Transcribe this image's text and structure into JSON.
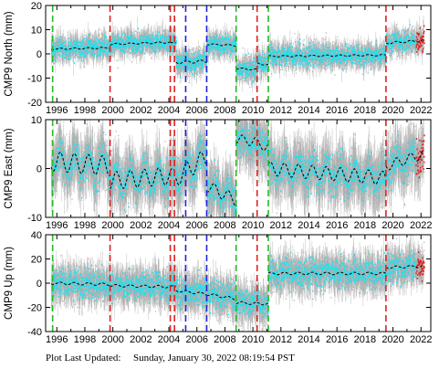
{
  "footer": {
    "label": "Plot Last Updated:",
    "timestamp": "Sunday, January 30, 2022 08:19:54 PST"
  },
  "colors": {
    "raw": "#aaaaaa",
    "cleaned": "#22e0f0",
    "recent": "#e02020",
    "trend": "#000000",
    "green_line": "#22bb22",
    "red_line": "#dd2222",
    "blue_line": "#2222dd"
  },
  "chart_data": [
    {
      "type": "scatter",
      "ylabel": "CMP9 North (mm)",
      "xlim": [
        1995.2,
        2022.7
      ],
      "ylim": [
        -20,
        20
      ],
      "yticks": [
        -20,
        -10,
        0,
        10,
        20
      ],
      "xticks": [
        1996,
        1998,
        2000,
        2002,
        2004,
        2006,
        2008,
        2010,
        2012,
        2014,
        2016,
        2018,
        2020,
        2022
      ],
      "trend_segments": [
        {
          "x": [
            1995.6,
            1999.8
          ],
          "y": [
            2.0,
            2.5
          ],
          "seasonal": 0.3
        },
        {
          "x": [
            1999.8,
            2004.1
          ],
          "y": [
            4.0,
            4.8
          ],
          "seasonal": 0.3
        },
        {
          "x": [
            2004.1,
            2004.5
          ],
          "y": [
            4.5,
            4.5
          ],
          "seasonal": 0.2
        },
        {
          "x": [
            2004.5,
            2006.7
          ],
          "y": [
            -3.5,
            -3.0
          ],
          "seasonal": 0.6
        },
        {
          "x": [
            2006.7,
            2008.8
          ],
          "y": [
            4.0,
            3.5
          ],
          "seasonal": 0.3
        },
        {
          "x": [
            2008.8,
            2010.3
          ],
          "y": [
            -6.0,
            -6.5
          ],
          "seasonal": 0.3
        },
        {
          "x": [
            2010.3,
            2011.1
          ],
          "y": [
            -4.0,
            -4.5
          ],
          "seasonal": 0.3
        },
        {
          "x": [
            2011.1,
            2019.5
          ],
          "y": [
            -1.0,
            -0.5
          ],
          "seasonal": 0.3
        },
        {
          "x": [
            2019.5,
            2022.2
          ],
          "y": [
            4.5,
            5.5
          ],
          "seasonal": 0.4
        }
      ],
      "noise": 2.0,
      "errorbar": 4.0,
      "vlines": [
        {
          "x": 1995.7,
          "color": "green"
        },
        {
          "x": 1999.8,
          "color": "red"
        },
        {
          "x": 2004.1,
          "color": "red"
        },
        {
          "x": 2004.4,
          "color": "red"
        },
        {
          "x": 2005.2,
          "color": "blue"
        },
        {
          "x": 2006.7,
          "color": "blue"
        },
        {
          "x": 2008.8,
          "color": "green"
        },
        {
          "x": 2010.3,
          "color": "red"
        },
        {
          "x": 2011.1,
          "color": "green"
        },
        {
          "x": 2019.5,
          "color": "red"
        }
      ]
    },
    {
      "type": "scatter",
      "ylabel": "CMP9 East (mm)",
      "xlim": [
        1995.2,
        2022.7
      ],
      "ylim": [
        -10,
        10
      ],
      "yticks": [
        -10,
        0,
        10
      ],
      "xticks": [
        1996,
        1998,
        2000,
        2002,
        2004,
        2006,
        2008,
        2010,
        2012,
        2014,
        2016,
        2018,
        2020,
        2022
      ],
      "trend_segments": [
        {
          "x": [
            1995.6,
            1999.8
          ],
          "y": [
            1.5,
            0.5
          ],
          "seasonal": 2.0
        },
        {
          "x": [
            1999.8,
            2004.1
          ],
          "y": [
            -2.5,
            -1.5
          ],
          "seasonal": 1.8
        },
        {
          "x": [
            2004.1,
            2004.5
          ],
          "y": [
            -1.0,
            -1.0
          ],
          "seasonal": 1.0
        },
        {
          "x": [
            2004.5,
            2006.7
          ],
          "y": [
            -2.0,
            2.5
          ],
          "seasonal": 1.8
        },
        {
          "x": [
            2006.7,
            2008.8
          ],
          "y": [
            -3.5,
            -6.5
          ],
          "seasonal": 1.2
        },
        {
          "x": [
            2008.8,
            2010.3
          ],
          "y": [
            6.0,
            5.5
          ],
          "seasonal": 1.0
        },
        {
          "x": [
            2010.3,
            2011.1
          ],
          "y": [
            5.0,
            4.5
          ],
          "seasonal": 1.0
        },
        {
          "x": [
            2011.1,
            2019.5
          ],
          "y": [
            0.0,
            -2.0
          ],
          "seasonal": 1.4
        },
        {
          "x": [
            2019.5,
            2022.2
          ],
          "y": [
            0.5,
            3.0
          ],
          "seasonal": 1.0
        }
      ],
      "noise": 1.8,
      "errorbar": 4.5,
      "vlines": [
        {
          "x": 1995.7,
          "color": "green"
        },
        {
          "x": 1999.8,
          "color": "red"
        },
        {
          "x": 2004.1,
          "color": "red"
        },
        {
          "x": 2004.4,
          "color": "red"
        },
        {
          "x": 2005.2,
          "color": "blue"
        },
        {
          "x": 2006.7,
          "color": "blue"
        },
        {
          "x": 2008.8,
          "color": "green"
        },
        {
          "x": 2010.3,
          "color": "red"
        },
        {
          "x": 2011.1,
          "color": "green"
        },
        {
          "x": 2019.5,
          "color": "red"
        }
      ]
    },
    {
      "type": "scatter",
      "ylabel": "CMP9 Up (mm)",
      "xlim": [
        1995.2,
        2022.7
      ],
      "ylim": [
        -40,
        40
      ],
      "yticks": [
        -40,
        -20,
        0,
        20,
        40
      ],
      "xticks": [
        1996,
        1998,
        2000,
        2002,
        2004,
        2006,
        2008,
        2010,
        2012,
        2014,
        2016,
        2018,
        2020,
        2022
      ],
      "trend_segments": [
        {
          "x": [
            1995.6,
            1999.8
          ],
          "y": [
            0.0,
            -1.0
          ],
          "seasonal": 1.0
        },
        {
          "x": [
            1999.8,
            2004.1
          ],
          "y": [
            -2.0,
            -3.0
          ],
          "seasonal": 1.0
        },
        {
          "x": [
            2004.1,
            2004.5
          ],
          "y": [
            -3.0,
            -3.0
          ],
          "seasonal": 0.8
        },
        {
          "x": [
            2004.5,
            2006.7
          ],
          "y": [
            -6.0,
            -9.0
          ],
          "seasonal": 1.0
        },
        {
          "x": [
            2006.7,
            2008.8
          ],
          "y": [
            -9.0,
            -13.0
          ],
          "seasonal": 1.0
        },
        {
          "x": [
            2008.8,
            2010.3
          ],
          "y": [
            -16.0,
            -17.0
          ],
          "seasonal": 1.0
        },
        {
          "x": [
            2010.3,
            2011.1
          ],
          "y": [
            -17.0,
            -17.0
          ],
          "seasonal": 1.0
        },
        {
          "x": [
            2011.1,
            2019.5
          ],
          "y": [
            8.0,
            8.0
          ],
          "seasonal": 1.0
        },
        {
          "x": [
            2019.5,
            2022.2
          ],
          "y": [
            13.0,
            14.0
          ],
          "seasonal": 1.0
        }
      ],
      "noise": 5.5,
      "errorbar": 12.0,
      "vlines": [
        {
          "x": 1995.7,
          "color": "green"
        },
        {
          "x": 1999.8,
          "color": "red"
        },
        {
          "x": 2004.1,
          "color": "red"
        },
        {
          "x": 2004.4,
          "color": "red"
        },
        {
          "x": 2005.2,
          "color": "blue"
        },
        {
          "x": 2006.7,
          "color": "blue"
        },
        {
          "x": 2008.8,
          "color": "green"
        },
        {
          "x": 2010.3,
          "color": "red"
        },
        {
          "x": 2011.1,
          "color": "green"
        },
        {
          "x": 2019.5,
          "color": "red"
        }
      ]
    }
  ]
}
